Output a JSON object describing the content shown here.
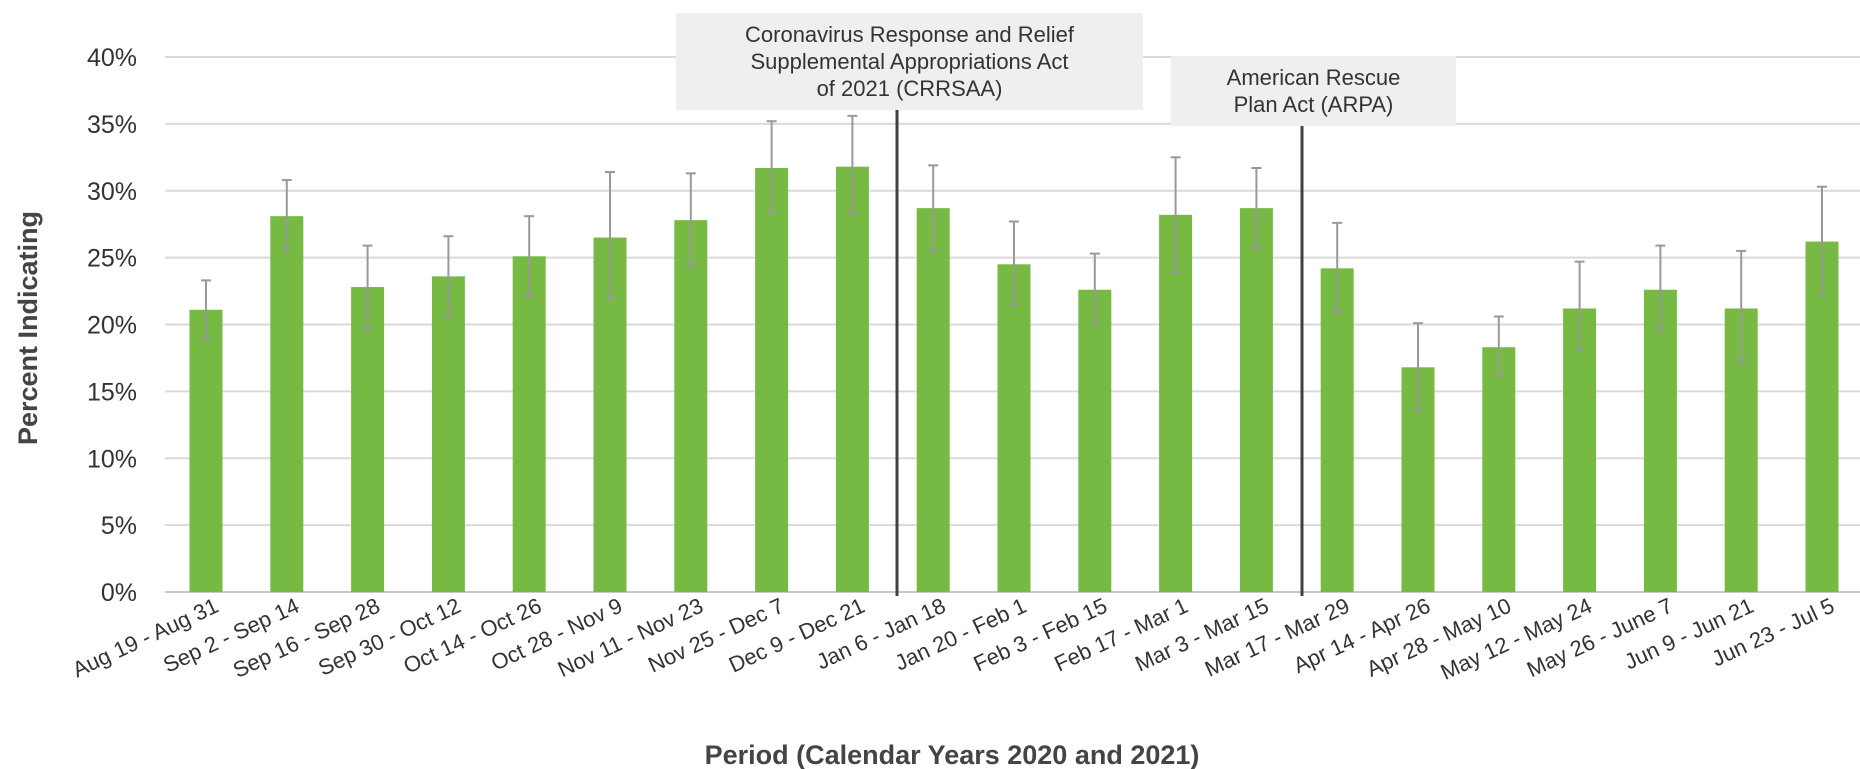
{
  "chart_data": {
    "type": "bar",
    "title": "",
    "xlabel": "Period (Calendar Years 2020 and 2021)",
    "ylabel": "Percent Indicating",
    "ylim": [
      0,
      40
    ],
    "yticks": [
      "0%",
      "5%",
      "10%",
      "15%",
      "20%",
      "25%",
      "30%",
      "35%",
      "40%"
    ],
    "grid": true,
    "legend": "none",
    "categories": [
      "Aug 19 - Aug 31",
      "Sep 2 - Sep 14",
      "Sep 16 - Sep 28",
      "Sep 30 - Oct 12",
      "Oct 14 - Oct 26",
      "Oct 28 - Nov 9",
      "Nov 11 - Nov 23",
      "Nov 25 - Dec 7",
      "Dec 9 - Dec 21",
      "Jan 6 - Jan 18",
      "Jan 20 - Feb 1",
      "Feb 3 - Feb 15",
      "Feb 17 - Mar 1",
      "Mar 3 - Mar 15",
      "Mar 17 - Mar 29",
      "Apr 14 - Apr 26",
      "Apr 28 - May 10",
      "May 12 - May 24",
      "May 26 - June 7",
      "Jun 9 - Jun 21",
      "Jun 23 - Jul 5"
    ],
    "values": [
      21.1,
      28.1,
      22.8,
      23.6,
      25.1,
      26.5,
      27.8,
      31.7,
      31.8,
      28.7,
      24.5,
      22.6,
      28.2,
      28.7,
      24.2,
      16.8,
      18.3,
      21.2,
      22.6,
      21.2,
      26.2
    ],
    "error_low": [
      18.9,
      25.5,
      19.7,
      20.6,
      22.1,
      21.9,
      24.4,
      28.4,
      28.3,
      25.5,
      21.5,
      20.1,
      23.9,
      25.7,
      20.9,
      13.6,
      16.2,
      18.0,
      19.5,
      17.2,
      22.2
    ],
    "error_high": [
      23.3,
      30.8,
      25.9,
      26.6,
      28.1,
      31.4,
      31.3,
      35.2,
      35.6,
      31.9,
      27.7,
      25.3,
      32.5,
      31.7,
      27.6,
      20.1,
      20.6,
      24.7,
      25.9,
      25.5,
      30.3
    ],
    "bar_color": "#76b943",
    "error_color": "#999999",
    "annotations": [
      {
        "after_category_index": 8,
        "lines": [
          "Coronavirus Response and Relief",
          "Supplemental Appropriations Act",
          "of 2021 (CRRSAA)"
        ]
      },
      {
        "after_category_index": 13,
        "lines": [
          "American Rescue",
          "Plan Act (ARPA)"
        ]
      }
    ]
  }
}
